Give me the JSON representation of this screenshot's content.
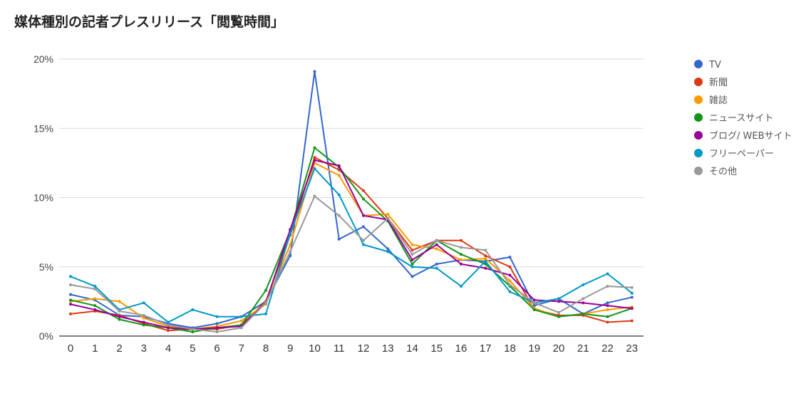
{
  "chart_data": {
    "type": "line",
    "title": "媒体種別の記者プレスリリース「閲覧時間」",
    "xlabel": "",
    "ylabel": "",
    "x": [
      0,
      1,
      2,
      3,
      4,
      5,
      6,
      7,
      8,
      9,
      10,
      11,
      12,
      13,
      14,
      15,
      16,
      17,
      18,
      19,
      20,
      21,
      22,
      23
    ],
    "ylim": [
      0,
      20
    ],
    "yticks": [
      0,
      5,
      10,
      15,
      20
    ],
    "ytick_labels": [
      "0%",
      "5%",
      "10%",
      "15%",
      "20%"
    ],
    "grid": true,
    "legend_position": "right",
    "series": [
      {
        "name": "TV",
        "color": "#3366cc",
        "values": [
          3.0,
          2.6,
          1.5,
          1.4,
          0.9,
          0.6,
          0.9,
          1.4,
          2.5,
          5.8,
          19.1,
          7.0,
          7.9,
          6.3,
          4.3,
          5.2,
          5.5,
          5.4,
          5.7,
          2.2,
          2.7,
          1.6,
          2.4,
          2.8
        ]
      },
      {
        "name": "新聞",
        "color": "#dc3912",
        "values": [
          1.6,
          1.8,
          1.5,
          0.9,
          0.4,
          0.5,
          0.5,
          0.8,
          2.5,
          7.3,
          12.9,
          12.0,
          10.5,
          8.5,
          6.2,
          6.9,
          6.9,
          5.8,
          5.0,
          1.9,
          1.5,
          1.5,
          1.0,
          1.1
        ]
      },
      {
        "name": "雑誌",
        "color": "#ff9900",
        "values": [
          2.5,
          2.7,
          2.5,
          1.3,
          0.7,
          0.5,
          0.7,
          1.1,
          2.3,
          6.6,
          12.5,
          11.6,
          8.7,
          8.8,
          6.6,
          6.3,
          5.5,
          5.6,
          4.0,
          2.0,
          1.4,
          1.6,
          1.9,
          2.1
        ]
      },
      {
        "name": "ニュースサイト",
        "color": "#109618",
        "values": [
          2.6,
          2.2,
          1.2,
          0.8,
          0.6,
          0.3,
          0.6,
          0.8,
          3.3,
          7.6,
          13.6,
          12.2,
          9.9,
          8.3,
          5.2,
          6.9,
          5.9,
          5.2,
          3.6,
          1.9,
          1.4,
          1.6,
          1.4,
          2.0
        ]
      },
      {
        "name": "ブログ/ WEBサイト",
        "color": "#990099",
        "values": [
          2.3,
          1.9,
          1.4,
          1.0,
          0.6,
          0.5,
          0.6,
          0.7,
          2.4,
          7.7,
          12.7,
          12.3,
          8.7,
          8.4,
          5.5,
          6.6,
          5.2,
          4.9,
          4.4,
          2.6,
          2.5,
          2.4,
          2.2,
          2.0
        ]
      },
      {
        "name": "フリーペーパー",
        "color": "#0099c6",
        "values": [
          4.3,
          3.6,
          1.9,
          2.4,
          1.0,
          1.9,
          1.4,
          1.4,
          1.6,
          7.4,
          12.1,
          10.2,
          6.6,
          6.1,
          5.0,
          4.9,
          3.6,
          5.4,
          3.2,
          2.4,
          2.7,
          3.7,
          4.5,
          3.1
        ]
      },
      {
        "name": "その他",
        "color": "#999999",
        "values": [
          3.7,
          3.4,
          1.8,
          1.5,
          0.8,
          0.5,
          0.3,
          0.6,
          2.4,
          6.1,
          10.1,
          8.7,
          6.9,
          8.5,
          5.9,
          6.9,
          6.4,
          6.2,
          3.7,
          2.4,
          1.7,
          2.7,
          3.6,
          3.5
        ]
      }
    ]
  }
}
